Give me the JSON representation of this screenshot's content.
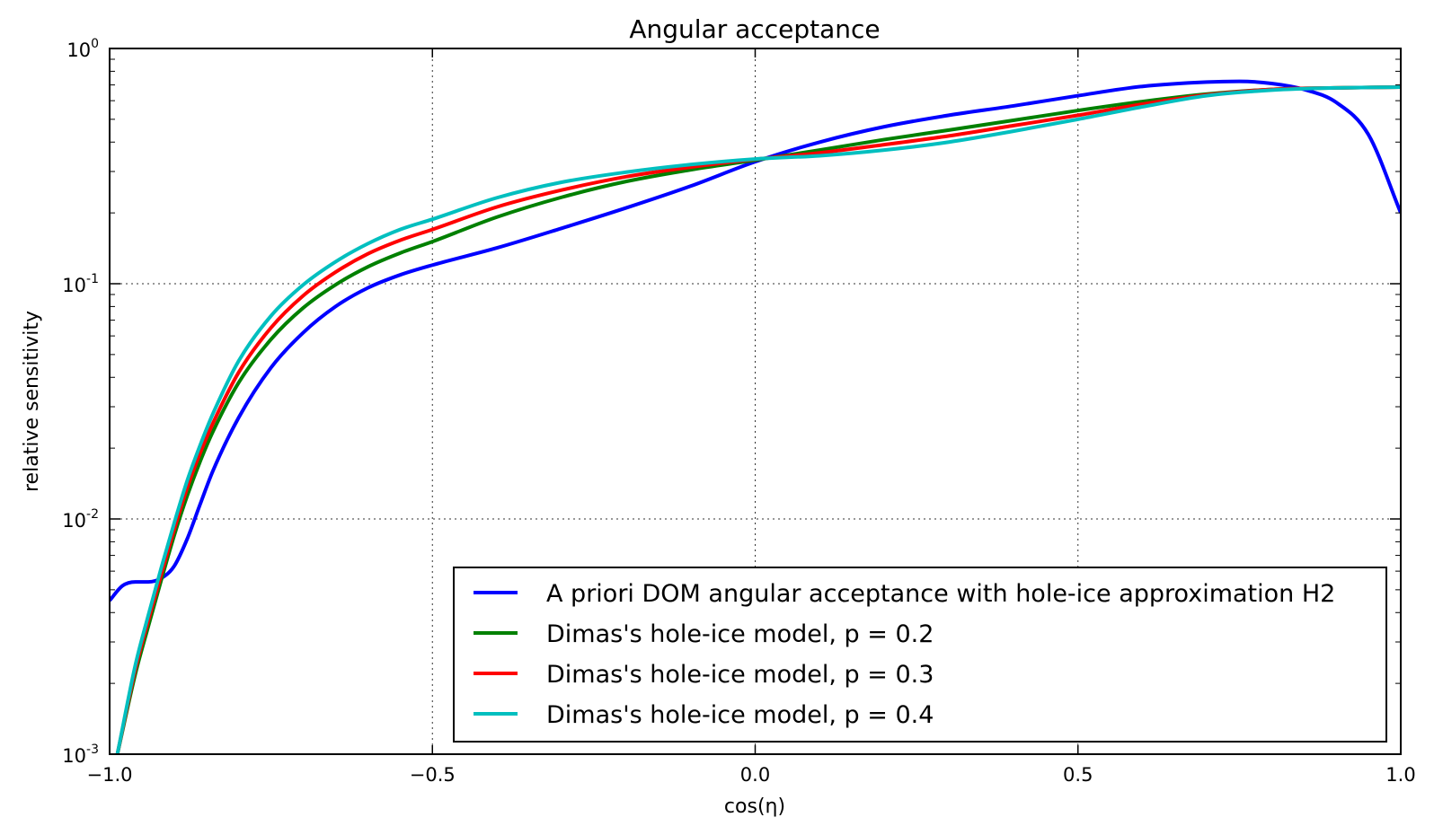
{
  "chart_data": {
    "type": "line",
    "title": "Angular acceptance",
    "xlabel": "cos(η)",
    "ylabel": "relative sensitivity",
    "xlim": [
      -1.0,
      1.0
    ],
    "ylim": [
      0.001,
      1.0
    ],
    "yscale": "log",
    "grid": true,
    "legend_position": "lower-right",
    "x_ticks": [
      {
        "value": -1.0,
        "label": "−1.0"
      },
      {
        "value": -0.5,
        "label": "−0.5"
      },
      {
        "value": 0.0,
        "label": "0.0"
      },
      {
        "value": 0.5,
        "label": "0.5"
      },
      {
        "value": 1.0,
        "label": "1.0"
      }
    ],
    "y_ticks": [
      {
        "value": 1.0,
        "base": "10",
        "exp": "0"
      },
      {
        "value": 0.1,
        "base": "10",
        "exp": "-1"
      },
      {
        "value": 0.01,
        "base": "10",
        "exp": "-2"
      },
      {
        "value": 0.001,
        "base": "10",
        "exp": "-3"
      }
    ],
    "series": [
      {
        "name": "A priori DOM angular acceptance with hole-ice approximation H2",
        "color": "#0000ff",
        "x": [
          -1.0,
          -0.98,
          -0.96,
          -0.94,
          -0.92,
          -0.9,
          -0.88,
          -0.86,
          -0.84,
          -0.8,
          -0.75,
          -0.7,
          -0.65,
          -0.6,
          -0.55,
          -0.5,
          -0.4,
          -0.3,
          -0.2,
          -0.1,
          0.0,
          0.1,
          0.2,
          0.3,
          0.4,
          0.5,
          0.6,
          0.7,
          0.75,
          0.8,
          0.85,
          0.9,
          0.95,
          1.0
        ],
        "y": [
          0.0045,
          0.0052,
          0.0054,
          0.0054,
          0.0056,
          0.0063,
          0.0082,
          0.0115,
          0.016,
          0.027,
          0.044,
          0.062,
          0.08,
          0.096,
          0.109,
          0.12,
          0.142,
          0.172,
          0.21,
          0.26,
          0.33,
          0.4,
          0.465,
          0.52,
          0.57,
          0.63,
          0.69,
          0.72,
          0.725,
          0.71,
          0.67,
          0.59,
          0.43,
          0.2
        ]
      },
      {
        "name": "Dimas's hole-ice model, p = 0.2",
        "color": "#008000",
        "x": [
          -0.988,
          -0.96,
          -0.94,
          -0.92,
          -0.9,
          -0.88,
          -0.86,
          -0.84,
          -0.8,
          -0.75,
          -0.7,
          -0.65,
          -0.6,
          -0.55,
          -0.5,
          -0.4,
          -0.3,
          -0.2,
          -0.1,
          0.0,
          0.1,
          0.2,
          0.3,
          0.4,
          0.5,
          0.6,
          0.7,
          0.8,
          0.9,
          1.0
        ],
        "y": [
          0.001,
          0.0022,
          0.0035,
          0.0055,
          0.0085,
          0.0125,
          0.0175,
          0.0235,
          0.038,
          0.058,
          0.079,
          0.099,
          0.118,
          0.135,
          0.151,
          0.192,
          0.233,
          0.272,
          0.305,
          0.335,
          0.37,
          0.41,
          0.45,
          0.495,
          0.545,
          0.595,
          0.64,
          0.67,
          0.68,
          0.685
        ]
      },
      {
        "name": "Dimas's hole-ice model, p = 0.3",
        "color": "#ff0000",
        "x": [
          -0.988,
          -0.96,
          -0.94,
          -0.92,
          -0.9,
          -0.88,
          -0.86,
          -0.84,
          -0.8,
          -0.75,
          -0.7,
          -0.65,
          -0.6,
          -0.55,
          -0.5,
          -0.4,
          -0.3,
          -0.2,
          -0.1,
          0.0,
          0.1,
          0.2,
          0.3,
          0.4,
          0.5,
          0.6,
          0.7,
          0.8,
          0.9,
          1.0
        ],
        "y": [
          0.001,
          0.0023,
          0.0037,
          0.0058,
          0.009,
          0.0135,
          0.019,
          0.0255,
          0.042,
          0.065,
          0.089,
          0.112,
          0.134,
          0.153,
          0.17,
          0.212,
          0.25,
          0.285,
          0.313,
          0.338,
          0.36,
          0.39,
          0.425,
          0.47,
          0.52,
          0.58,
          0.635,
          0.67,
          0.68,
          0.685
        ]
      },
      {
        "name": "Dimas's hole-ice model, p = 0.4",
        "color": "#00bfbf",
        "x": [
          -0.988,
          -0.96,
          -0.94,
          -0.92,
          -0.9,
          -0.88,
          -0.86,
          -0.84,
          -0.8,
          -0.75,
          -0.7,
          -0.65,
          -0.6,
          -0.55,
          -0.5,
          -0.4,
          -0.3,
          -0.2,
          -0.1,
          0.0,
          0.1,
          0.2,
          0.3,
          0.4,
          0.5,
          0.6,
          0.7,
          0.8,
          0.9,
          1.0
        ],
        "y": [
          0.001,
          0.0024,
          0.0039,
          0.0062,
          0.0096,
          0.0145,
          0.0205,
          0.028,
          0.047,
          0.073,
          0.099,
          0.124,
          0.148,
          0.17,
          0.188,
          0.232,
          0.27,
          0.298,
          0.321,
          0.339,
          0.35,
          0.37,
          0.4,
          0.445,
          0.5,
          0.565,
          0.63,
          0.665,
          0.68,
          0.685
        ]
      }
    ]
  }
}
